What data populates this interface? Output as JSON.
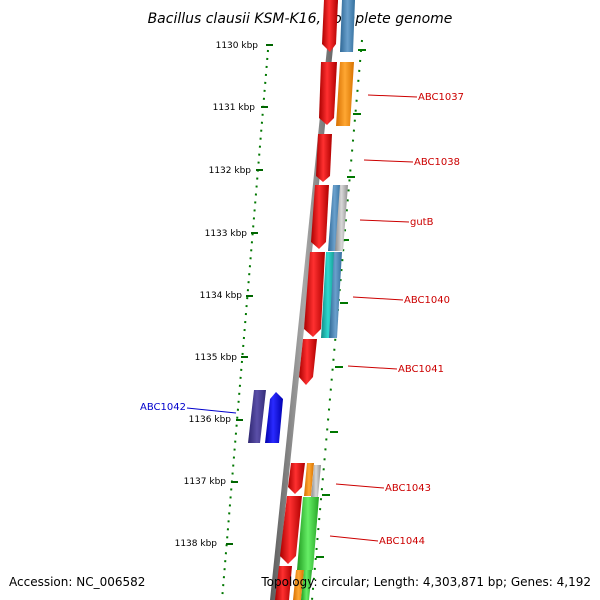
{
  "title": "Bacillus clausii KSM-K16, complete genome",
  "ticks": [
    "1130 kbp",
    "1131 kbp",
    "1132 kbp",
    "1133 kbp",
    "1134 kbp",
    "1135 kbp",
    "1136 kbp",
    "1137 kbp",
    "1138 kbp"
  ],
  "gene_labels": [
    {
      "text": "ABC1037",
      "color": "#cc0000"
    },
    {
      "text": "ABC1038",
      "color": "#cc0000"
    },
    {
      "text": "gutB",
      "color": "#cc0000"
    },
    {
      "text": "ABC1040",
      "color": "#cc0000"
    },
    {
      "text": "ABC1041",
      "color": "#cc0000"
    },
    {
      "text": "ABC1042",
      "color": "#0000cc"
    },
    {
      "text": "ABC1043",
      "color": "#cc0000"
    },
    {
      "text": "ABC1044",
      "color": "#cc0000"
    }
  ],
  "footer": {
    "accession": "Accession: NC_006582",
    "summary": "Topology: circular; Length: 4,303,871 bp; Genes: 4,192"
  },
  "colors": {
    "forward_cds": "#ff0000",
    "reverse_cds": "#0000ff",
    "backbone": "#808080",
    "tick": "#007700",
    "cog_blue": "#4682b4",
    "cog_orange": "#ff8c00",
    "cog_teal": "#20b2aa",
    "cog_purple": "#483d8b",
    "cog_green": "#32cd32",
    "cog_gray": "#b0b0b0"
  }
}
